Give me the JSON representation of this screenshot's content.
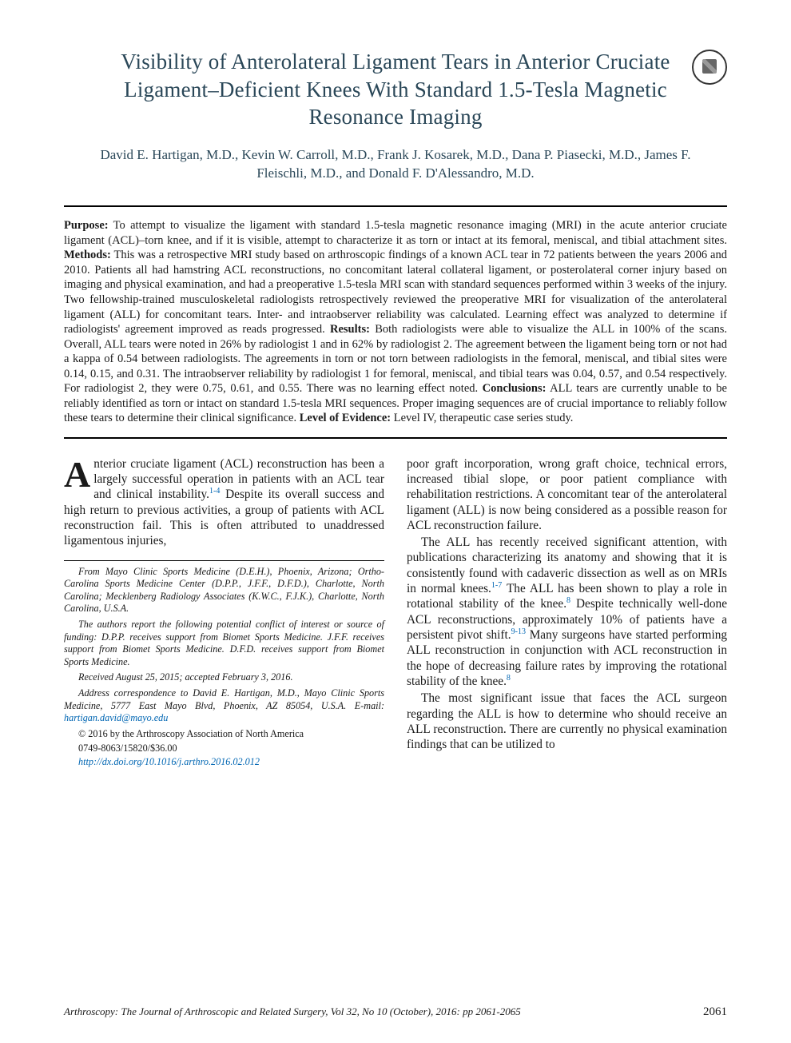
{
  "crossmark_label": "CrossMark",
  "title": "Visibility of Anterolateral Ligament Tears in Anterior Cruciate Ligament–Deficient Knees With Standard 1.5-Tesla Magnetic Resonance Imaging",
  "authors": "David E. Hartigan, M.D., Kevin W. Carroll, M.D., Frank J. Kosarek, M.D., Dana P. Piasecki, M.D., James F. Fleischli, M.D., and Donald F. D'Alessandro, M.D.",
  "abstract": {
    "purpose_label": "Purpose:",
    "purpose": " To attempt to visualize the ligament with standard 1.5-tesla magnetic resonance imaging (MRI) in the acute anterior cruciate ligament (ACL)–torn knee, and if it is visible, attempt to characterize it as torn or intact at its femoral, meniscal, and tibial attachment sites. ",
    "methods_label": "Methods:",
    "methods": " This was a retrospective MRI study based on arthroscopic findings of a known ACL tear in 72 patients between the years 2006 and 2010. Patients all had hamstring ACL reconstructions, no concomitant lateral collateral ligament, or posterolateral corner injury based on imaging and physical examination, and had a preoperative 1.5-tesla MRI scan with standard sequences performed within 3 weeks of the injury. Two fellowship-trained musculoskeletal radiologists retrospectively reviewed the preoperative MRI for visualization of the anterolateral ligament (ALL) for concomitant tears. Inter- and intraobserver reliability was calculated. Learning effect was analyzed to determine if radiologists' agreement improved as reads progressed. ",
    "results_label": "Results:",
    "results": " Both radiologists were able to visualize the ALL in 100% of the scans. Overall, ALL tears were noted in 26% by radiologist 1 and in 62% by radiologist 2. The agreement between the ligament being torn or not had a kappa of 0.54 between radiologists. The agreements in torn or not torn between radiologists in the femoral, meniscal, and tibial sites were 0.14, 0.15, and 0.31. The intraobserver reliability by radiologist 1 for femoral, meniscal, and tibial tears was 0.04, 0.57, and 0.54 respectively. For radiologist 2, they were 0.75, 0.61, and 0.55. There was no learning effect noted. ",
    "conclusions_label": "Conclusions:",
    "conclusions": " ALL tears are currently unable to be reliably identified as torn or intact on standard 1.5-tesla MRI sequences. Proper imaging sequences are of crucial importance to reliably follow these tears to determine their clinical significance. ",
    "loe_label": "Level of Evidence:",
    "loe": " Level IV, therapeutic case series study."
  },
  "body": {
    "left_p1a": "nterior cruciate ligament (ACL) reconstruction has been a largely successful operation in patients with an ACL tear and clinical instability.",
    "left_p1_ref": "1-4",
    "left_p1b": " Despite its overall success and high return to previous activities, a group of patients with ACL reconstruction fail. This is often attributed to unaddressed ligamentous injuries,",
    "right_p1": "poor graft incorporation, wrong graft choice, technical errors, increased tibial slope, or poor patient compliance with rehabilitation restrictions. A concomitant tear of the anterolateral ligament (ALL) is now being considered as a possible reason for ACL reconstruction failure.",
    "right_p2a": "The ALL has recently received significant attention, with publications characterizing its anatomy and showing that it is consistently found with cadaveric dissection as well as on MRIs in normal knees.",
    "right_p2_ref1": "1-7",
    "right_p2b": " The ALL has been shown to play a role in rotational stability of the knee.",
    "right_p2_ref2": "8",
    "right_p2c": " Despite technically well-done ACL reconstructions, approximately 10% of patients have a persistent pivot shift.",
    "right_p2_ref3": "9-13",
    "right_p2d": " Many surgeons have started performing ALL reconstruction in conjunction with ACL reconstruction in the hope of decreasing failure rates by improving the rotational stability of the knee.",
    "right_p2_ref4": "8",
    "right_p3": "The most significant issue that faces the ACL surgeon regarding the ALL is how to determine who should receive an ALL reconstruction. There are currently no physical examination findings that can be utilized to"
  },
  "footnotes": {
    "affil": "From Mayo Clinic Sports Medicine (D.E.H.), Phoenix, Arizona; Ortho-Carolina Sports Medicine Center (D.P.P., J.F.F., D.F.D.), Charlotte, North Carolina; Mecklenberg Radiology Associates (K.W.C., F.J.K.), Charlotte, North Carolina, U.S.A.",
    "coi": "The authors report the following potential conflict of interest or source of funding: D.P.P. receives support from Biomet Sports Medicine. J.F.F. receives support from Biomet Sports Medicine. D.F.D. receives support from Biomet Sports Medicine.",
    "received": "Received August 25, 2015; accepted February 3, 2016.",
    "address": "Address correspondence to David E. Hartigan, M.D., Mayo Clinic Sports Medicine, 5777 East Mayo Blvd, Phoenix, AZ 85054, U.S.A. E-mail: ",
    "email": "hartigan.david@mayo.edu",
    "copyright": "© 2016 by the Arthroscopy Association of North America",
    "issn": "0749-8063/15820/$36.00",
    "doi": "http://dx.doi.org/10.1016/j.arthro.2016.02.012"
  },
  "footer": {
    "citation": "Arthroscopy: The Journal of Arthroscopic and Related Surgery, Vol 32, No 10 (October), 2016: pp 2061-2065",
    "page": "2061"
  }
}
